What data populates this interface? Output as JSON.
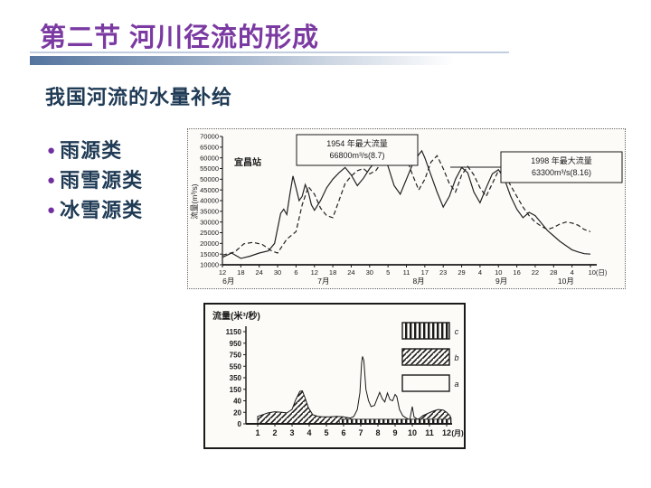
{
  "slide": {
    "title": "第二节 河川径流的形成",
    "subtitle": "我国河流的水量补给",
    "bullets": [
      "雨源类",
      "雨雪源类",
      "冰雪源类"
    ],
    "bullet_glyph": "●",
    "colors": {
      "title": "#7b3aa2",
      "body_text": "#203b55",
      "bullet_dot": "#7030a0",
      "accent_bar_start": "#54749e",
      "accent_thin": "#c2cedf",
      "ink": "#1a1a1a"
    }
  },
  "chart_data": [
    {
      "type": "line",
      "station": "宜昌站",
      "ylabel": "流量(m³/s)",
      "ylim": [
        10000,
        70000
      ],
      "y_ticks": [
        70000,
        65000,
        60000,
        55000,
        50000,
        45000,
        40000,
        35000,
        30000,
        25000,
        20000,
        15000,
        10000
      ],
      "x_tick_days": [
        0,
        6,
        12,
        18,
        24,
        30,
        36,
        42,
        48,
        54,
        60,
        66,
        72,
        78,
        84,
        90,
        96,
        102,
        108,
        114,
        120
      ],
      "x_tick_labels": [
        "12",
        "18",
        "24",
        "30",
        "6",
        "12",
        "18",
        "24",
        "30",
        "5",
        "11",
        "17",
        "23",
        "29",
        "4",
        "10",
        "16",
        "22",
        "28",
        "4",
        "10(日)"
      ],
      "month_labels": [
        {
          "label": "6月",
          "day": 2
        },
        {
          "label": "7月",
          "day": 33
        },
        {
          "label": "8月",
          "day": 64
        },
        {
          "label": "9月",
          "day": 91
        },
        {
          "label": "10月",
          "day": 112
        }
      ],
      "annotations": [
        {
          "lines": [
            "1954 年最大流量",
            "66800m³/s(8.7)"
          ]
        },
        {
          "lines": [
            "1998 年最大流量",
            "63300m³/s(8.16)"
          ]
        }
      ],
      "series": [
        {
          "name": "1954",
          "style": "dashed",
          "peak": {
            "value": 66800,
            "date": "8.7"
          },
          "points": [
            [
              0,
              14500
            ],
            [
              4,
              16000
            ],
            [
              7,
              19800
            ],
            [
              10,
              20500
            ],
            [
              13,
              19500
            ],
            [
              16,
              16500
            ],
            [
              18,
              15500
            ],
            [
              21,
              22000
            ],
            [
              24,
              25500
            ],
            [
              26,
              38000
            ],
            [
              28,
              46500
            ],
            [
              30,
              43000
            ],
            [
              32,
              36500
            ],
            [
              34,
              33000
            ],
            [
              36,
              32000
            ],
            [
              38,
              40000
            ],
            [
              40,
              48000
            ],
            [
              42,
              51500
            ],
            [
              44,
              54000
            ],
            [
              46,
              55000
            ],
            [
              48,
              52500
            ],
            [
              50,
              54000
            ],
            [
              52,
              58000
            ],
            [
              54,
              63000
            ],
            [
              56,
              66800
            ],
            [
              58,
              63500
            ],
            [
              60,
              60000
            ],
            [
              62,
              52000
            ],
            [
              64,
              45000
            ],
            [
              66,
              50000
            ],
            [
              68,
              58000
            ],
            [
              70,
              61000
            ],
            [
              72,
              55000
            ],
            [
              74,
              48000
            ],
            [
              76,
              44000
            ],
            [
              78,
              52000
            ],
            [
              80,
              56000
            ],
            [
              82,
              52000
            ],
            [
              84,
              46000
            ],
            [
              86,
              42000
            ],
            [
              88,
              48000
            ],
            [
              90,
              54000
            ],
            [
              92,
              52500
            ],
            [
              94,
              47000
            ],
            [
              96,
              42000
            ],
            [
              98,
              37000
            ],
            [
              100,
              33000
            ],
            [
              102,
              30000
            ],
            [
              104,
              28000
            ],
            [
              106,
              26500
            ],
            [
              108,
              27500
            ],
            [
              110,
              29000
            ],
            [
              112,
              30000
            ],
            [
              114,
              29500
            ],
            [
              116,
              28500
            ],
            [
              118,
              26500
            ],
            [
              120,
              25500
            ]
          ]
        },
        {
          "name": "1998",
          "style": "solid",
          "peak": {
            "value": 63300,
            "date": "8.16"
          },
          "points": [
            [
              0,
              13500
            ],
            [
              3,
              15500
            ],
            [
              6,
              13000
            ],
            [
              9,
              14000
            ],
            [
              12,
              15500
            ],
            [
              15,
              16500
            ],
            [
              17,
              20000
            ],
            [
              19,
              34000
            ],
            [
              20,
              36000
            ],
            [
              21,
              33500
            ],
            [
              22,
              43000
            ],
            [
              23,
              51500
            ],
            [
              24,
              46000
            ],
            [
              25,
              40000
            ],
            [
              26,
              42000
            ],
            [
              27,
              47500
            ],
            [
              28,
              44000
            ],
            [
              29,
              38000
            ],
            [
              30,
              35500
            ],
            [
              32,
              40000
            ],
            [
              34,
              46000
            ],
            [
              36,
              50000
            ],
            [
              38,
              53000
            ],
            [
              40,
              55500
            ],
            [
              42,
              52000
            ],
            [
              44,
              47000
            ],
            [
              46,
              50500
            ],
            [
              48,
              55000
            ],
            [
              50,
              58500
            ],
            [
              52,
              61000
            ],
            [
              54,
              56000
            ],
            [
              56,
              47000
            ],
            [
              58,
              43000
            ],
            [
              60,
              50000
            ],
            [
              62,
              57000
            ],
            [
              64,
              61500
            ],
            [
              65,
              63300
            ],
            [
              66,
              60000
            ],
            [
              68,
              52000
            ],
            [
              70,
              44000
            ],
            [
              72,
              37000
            ],
            [
              74,
              42000
            ],
            [
              76,
              50000
            ],
            [
              78,
              55500
            ],
            [
              80,
              53000
            ],
            [
              82,
              44000
            ],
            [
              84,
              39000
            ],
            [
              86,
              46000
            ],
            [
              88,
              52500
            ],
            [
              90,
              54500
            ],
            [
              92,
              50000
            ],
            [
              94,
              42000
            ],
            [
              96,
              36000
            ],
            [
              98,
              32000
            ],
            [
              100,
              34500
            ],
            [
              102,
              33000
            ],
            [
              104,
              29500
            ],
            [
              106,
              26000
            ],
            [
              108,
              23500
            ],
            [
              110,
              21000
            ],
            [
              112,
              19000
            ],
            [
              114,
              17000
            ],
            [
              116,
              16000
            ],
            [
              118,
              15200
            ],
            [
              120,
              15000
            ]
          ]
        }
      ]
    },
    {
      "type": "area",
      "ylabel": "流量(米³/秒)",
      "x_unit": "(月)",
      "y_ticks": [
        0,
        20,
        40,
        150,
        350,
        550,
        750,
        950,
        1150
      ],
      "x_ticks": [
        "1",
        "2",
        "3",
        "4",
        "5",
        "6",
        "7",
        "8",
        "9",
        "10",
        "11",
        "12"
      ],
      "legend": [
        {
          "label": "c",
          "pattern": "vertical-hatch"
        },
        {
          "label": "b",
          "pattern": "diagonal-hatch"
        },
        {
          "label": "a",
          "pattern": "plain"
        }
      ],
      "layers": [
        {
          "name": "a",
          "pattern": "plain",
          "polygons": [
            [
              [
                6.4,
                10
              ],
              [
                6.6,
                13
              ],
              [
                6.8,
                25
              ],
              [
                6.95,
                120
              ],
              [
                7.05,
                600
              ],
              [
                7.1,
                720
              ],
              [
                7.18,
                650
              ],
              [
                7.3,
                150
              ],
              [
                7.45,
                40
              ],
              [
                7.6,
                30
              ],
              [
                7.8,
                32
              ],
              [
                7.95,
                60
              ],
              [
                8.1,
                120
              ],
              [
                8.25,
                60
              ],
              [
                8.4,
                38
              ],
              [
                8.55,
                115
              ],
              [
                8.7,
                50
              ],
              [
                8.85,
                40
              ],
              [
                9.0,
                100
              ],
              [
                9.1,
                80
              ],
              [
                9.25,
                25
              ],
              [
                9.45,
                14
              ],
              [
                9.65,
                10
              ],
              [
                9.85,
                7
              ],
              [
                10.0,
                30
              ],
              [
                10.1,
                12
              ],
              [
                10.3,
                8
              ],
              [
                10.4,
                9
              ]
            ]
          ]
        },
        {
          "name": "b",
          "pattern": "diagonal-hatch",
          "polygons": [
            [
              [
                1,
                13
              ],
              [
                1.3,
                16
              ],
              [
                1.6,
                19
              ],
              [
                2.0,
                21
              ],
              [
                2.4,
                20
              ],
              [
                2.7,
                19
              ],
              [
                3.0,
                25
              ],
              [
                3.2,
                45
              ],
              [
                3.45,
                130
              ],
              [
                3.6,
                135
              ],
              [
                3.75,
                70
              ],
              [
                3.95,
                28
              ],
              [
                4.2,
                16
              ],
              [
                4.5,
                13
              ],
              [
                4.8,
                12
              ],
              [
                5.2,
                12
              ],
              [
                5.6,
                13
              ],
              [
                6.0,
                12
              ],
              [
                6.2,
                11
              ],
              [
                6.4,
                10
              ]
            ],
            [
              [
                10.4,
                9
              ],
              [
                10.6,
                14
              ],
              [
                10.9,
                18
              ],
              [
                11.2,
                22
              ],
              [
                11.5,
                25
              ],
              [
                11.8,
                24
              ],
              [
                12.0,
                20
              ],
              [
                12.2,
                14
              ],
              [
                12.25,
                10
              ]
            ]
          ]
        },
        {
          "name": "c",
          "pattern": "vertical-hatch",
          "band": {
            "from_month": 5.75,
            "to_month": 12.25,
            "value": 8
          }
        }
      ]
    }
  ]
}
